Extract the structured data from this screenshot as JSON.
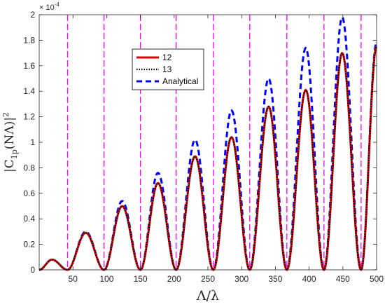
{
  "chart_data": {
    "type": "line",
    "xlabel": "Λ/λ",
    "ylabel_parts": {
      "main": "|C",
      "sub": "1p",
      "mid": "(NΛ)|",
      "sup": "2"
    },
    "y_multiplier": "× 10",
    "y_multiplier_exp": "-4",
    "xlim": [
      0,
      500
    ],
    "ylim": [
      0,
      2
    ],
    "xticks": [
      50,
      100,
      150,
      200,
      250,
      300,
      350,
      400,
      450,
      500
    ],
    "yticks": [
      0,
      0.2,
      0.4,
      0.6,
      0.8,
      1,
      1.2,
      1.4,
      1.6,
      1.8,
      2
    ],
    "ytick_labels": [
      "0",
      "0.2",
      "0.4",
      "0.6",
      "0.8",
      "1",
      "1.2",
      "1.4",
      "1.6",
      "1.8",
      "2"
    ],
    "grid": false,
    "legend_position": "top-center",
    "vertical_lines_x": [
      42,
      96,
      150,
      203,
      258,
      312,
      367,
      422,
      477
    ],
    "colors": {
      "series12": "#e00000",
      "series13": "#000000",
      "analytical": "#0000ff",
      "vlines": "#ff00ff"
    },
    "series": [
      {
        "name": "12",
        "x": [
          0,
          19,
          42,
          69,
          96,
          123,
          150,
          176,
          203,
          231,
          258,
          285,
          312,
          340,
          367,
          395,
          422,
          449,
          477,
          500
        ],
        "values": [
          0,
          0.08,
          0,
          0.29,
          0,
          0.5,
          0,
          0.68,
          0,
          0.89,
          0,
          1.04,
          0,
          1.28,
          0,
          1.41,
          0,
          1.7,
          0,
          1.75
        ]
      },
      {
        "name": "13",
        "x": [
          0,
          19,
          42,
          69,
          96,
          123,
          150,
          176,
          203,
          231,
          258,
          285,
          312,
          340,
          367,
          395,
          422,
          449,
          477,
          500
        ],
        "values": [
          0,
          0.08,
          0,
          0.29,
          0,
          0.5,
          0,
          0.68,
          0,
          0.89,
          0,
          1.04,
          0,
          1.28,
          0,
          1.41,
          0,
          1.7,
          0,
          1.75
        ]
      },
      {
        "name": "Analytical",
        "x": [
          0,
          19,
          42,
          69,
          96,
          123,
          150,
          176,
          203,
          231,
          258,
          285,
          312,
          340,
          367,
          395,
          422,
          449,
          477,
          500
        ],
        "values": [
          0,
          0.08,
          0,
          0.3,
          0,
          0.54,
          0,
          0.76,
          0,
          1.02,
          0,
          1.25,
          0,
          1.5,
          0,
          1.74,
          0,
          1.98,
          0,
          1.78
        ]
      }
    ]
  }
}
